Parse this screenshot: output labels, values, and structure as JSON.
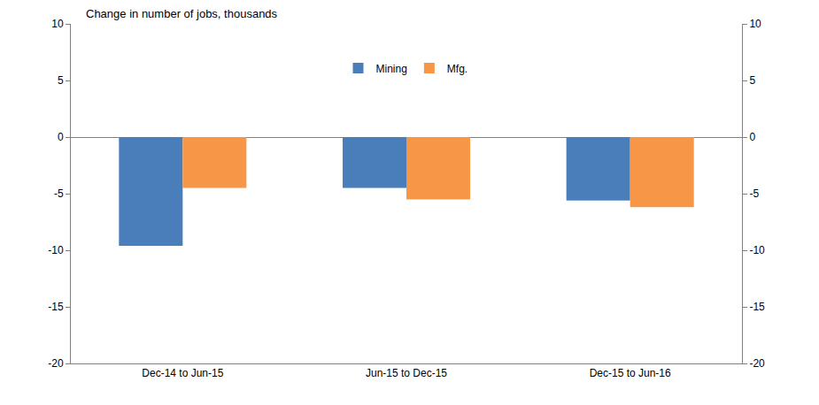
{
  "chart_data": {
    "type": "bar",
    "title": "Change in number of jobs, thousands",
    "categories": [
      "Dec-14 to Jun-15",
      "Jun-15 to Dec-15",
      "Dec-15 to Jun-16"
    ],
    "series": [
      {
        "name": "Mining",
        "color": "#4a7ebb",
        "values": [
          -9.6,
          -4.5,
          -5.6
        ]
      },
      {
        "name": "Mfg.",
        "color": "#f79646",
        "values": [
          -4.5,
          -5.5,
          -6.2
        ]
      }
    ],
    "ylim": [
      -20,
      10
    ],
    "yticks": [
      -20,
      -15,
      -10,
      -5,
      0,
      5,
      10
    ],
    "y2lim": [
      -20,
      10
    ],
    "y2ticks": [
      -20,
      -15,
      -10,
      -5,
      0,
      5,
      10
    ],
    "grid": false,
    "legend": "top"
  }
}
